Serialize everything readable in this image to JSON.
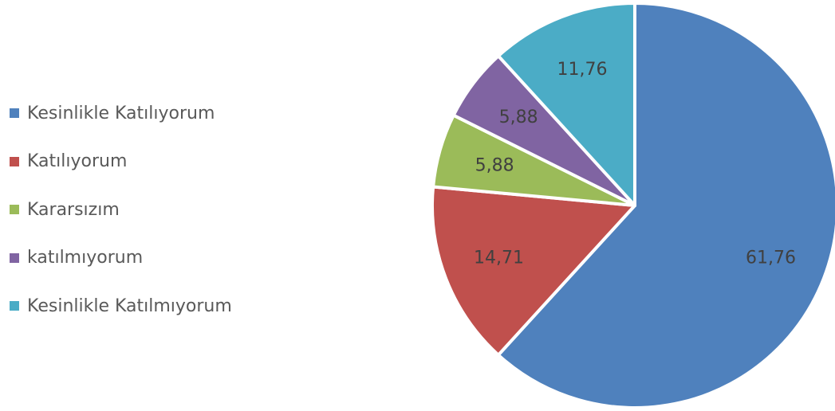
{
  "chart_data": {
    "type": "pie",
    "categories": [
      "Kesinlikle Katılıyorum",
      "Katılıyorum",
      "Kararsızım",
      "katılmıyorum",
      "Kesinlikle Katılmıyorum"
    ],
    "values": [
      61.76,
      14.71,
      5.88,
      5.88,
      11.76
    ],
    "value_labels": [
      "61,76",
      "14,71",
      "5,88",
      "5,88",
      "11,76"
    ],
    "colors": [
      "#4F81BD",
      "#C0504D",
      "#9BBB59",
      "#8064A2",
      "#4BACC6"
    ],
    "legend_position": "left",
    "start_angle_deg": 0,
    "direction": "clockwise"
  }
}
